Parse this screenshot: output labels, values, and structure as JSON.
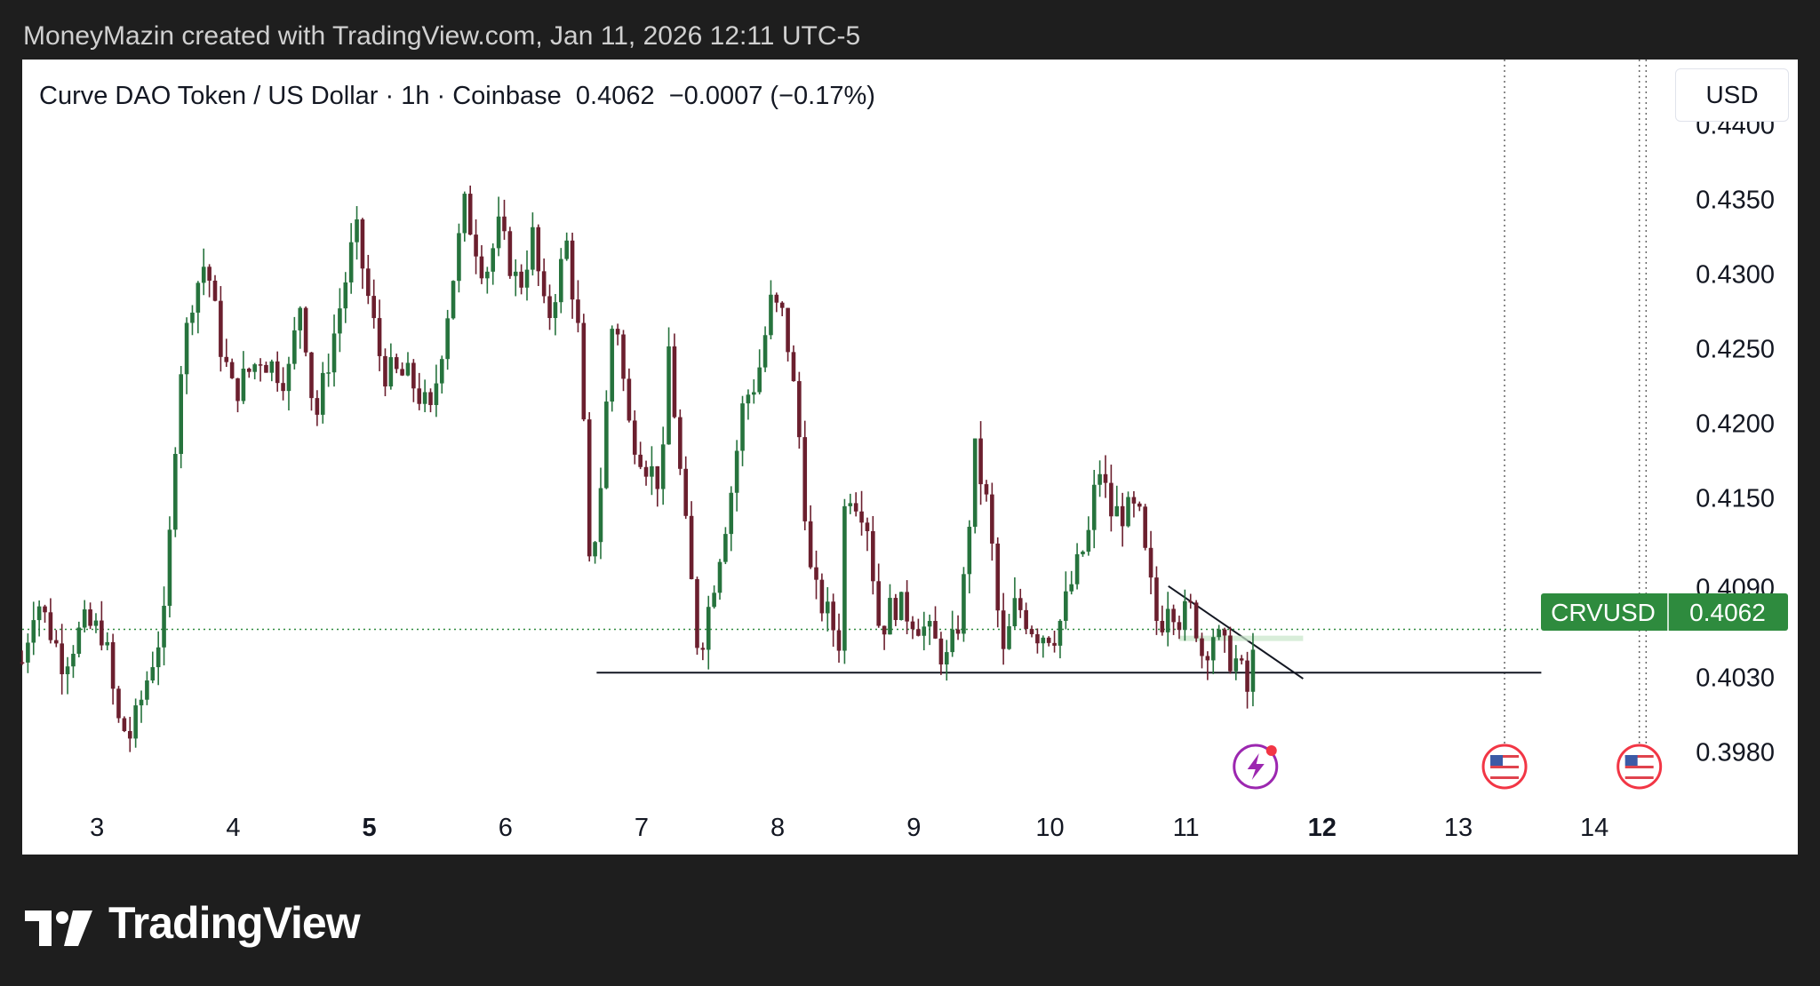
{
  "attribution": "MoneyMazin created with TradingView.com, Jan 11, 2026 12:11 UTC-5",
  "legend": {
    "symbol_name": "Curve DAO Token / US Dollar · 1h · Coinbase",
    "last": "0.4062",
    "change": "−0.0007 (−0.17%)"
  },
  "currency_button": "USD",
  "price_tag": {
    "symbol": "CRVUSD",
    "price": "0.4062"
  },
  "brand": "TradingView",
  "colors": {
    "up": "#26733d",
    "down": "#6b1f2e",
    "tag_bg": "#2e8b3e",
    "background": "#1e1e1e"
  },
  "chart_data": {
    "type": "candlestick",
    "interval": "1h",
    "y_ticks": [
      "0.4400",
      "0.4350",
      "0.4300",
      "0.4250",
      "0.4200",
      "0.4150",
      "0.4090",
      "0.4030",
      "0.3980"
    ],
    "x_ticks": [
      {
        "label": "3",
        "day": 3,
        "bold": false
      },
      {
        "label": "4",
        "day": 4,
        "bold": false
      },
      {
        "label": "5",
        "day": 5,
        "bold": true
      },
      {
        "label": "6",
        "day": 6,
        "bold": false
      },
      {
        "label": "7",
        "day": 7,
        "bold": false
      },
      {
        "label": "8",
        "day": 8,
        "bold": false
      },
      {
        "label": "9",
        "day": 9,
        "bold": false
      },
      {
        "label": "10",
        "day": 10,
        "bold": false
      },
      {
        "label": "11",
        "day": 11,
        "bold": false
      },
      {
        "label": "12",
        "day": 12,
        "bold": true
      },
      {
        "label": "13",
        "day": 13,
        "bold": false
      },
      {
        "label": "14",
        "day": 14,
        "bold": false
      }
    ],
    "ylim": [
      0.396,
      0.443
    ],
    "xlim": [
      2.45,
      14.43
    ],
    "last_price": 0.4062,
    "support_line": {
      "y": 0.4033,
      "x_start": 6.67,
      "x_end": 13.61
    },
    "trend_line": {
      "x_start": 10.87,
      "y_start": 0.4091,
      "x_end": 11.86,
      "y_end": 0.4029
    },
    "event_lines": [
      13.34,
      14.33,
      14.38
    ],
    "events": [
      {
        "icon": "lightning-icon",
        "day": 11.51
      },
      {
        "icon": "us-flag-icon",
        "day": 13.34
      },
      {
        "icon": "us-flag-icon",
        "day": 14.33
      }
    ],
    "anchors": [
      [
        2.45,
        0.404,
        0.405
      ],
      [
        2.55,
        0.4085,
        0.409
      ],
      [
        2.75,
        0.404,
        0.405
      ],
      [
        2.9,
        0.4065,
        0.407
      ],
      [
        3.05,
        0.406,
        0.4065
      ],
      [
        3.15,
        0.4,
        0.4005
      ],
      [
        3.25,
        0.399,
        0.3995
      ],
      [
        3.4,
        0.404,
        0.4045
      ],
      [
        3.5,
        0.407,
        0.4075
      ],
      [
        3.6,
        0.423,
        0.4235
      ],
      [
        3.7,
        0.4285,
        0.429
      ],
      [
        3.8,
        0.431,
        0.4315
      ],
      [
        3.9,
        0.4255,
        0.426
      ],
      [
        4.0,
        0.422,
        0.4225
      ],
      [
        4.2,
        0.4245,
        0.425
      ],
      [
        4.4,
        0.423,
        0.4235
      ],
      [
        4.5,
        0.4285,
        0.429
      ],
      [
        4.6,
        0.42,
        0.4205
      ],
      [
        4.8,
        0.4285,
        0.429
      ],
      [
        4.9,
        0.433,
        0.4335
      ],
      [
        5.0,
        0.428,
        0.4285
      ],
      [
        5.1,
        0.4235,
        0.424
      ],
      [
        5.3,
        0.423,
        0.4235
      ],
      [
        5.45,
        0.4205,
        0.421
      ],
      [
        5.6,
        0.429,
        0.4295
      ],
      [
        5.7,
        0.4345,
        0.435
      ],
      [
        5.85,
        0.43,
        0.4305
      ],
      [
        5.95,
        0.433,
        0.4335
      ],
      [
        6.1,
        0.429,
        0.4295
      ],
      [
        6.2,
        0.4325,
        0.433
      ],
      [
        6.3,
        0.4265,
        0.427
      ],
      [
        6.45,
        0.432,
        0.4325
      ],
      [
        6.55,
        0.425,
        0.4255
      ],
      [
        6.62,
        0.4095,
        0.41
      ],
      [
        6.7,
        0.416,
        0.4165
      ],
      [
        6.8,
        0.4285,
        0.429
      ],
      [
        6.9,
        0.42,
        0.4205
      ],
      [
        7.05,
        0.417,
        0.4175
      ],
      [
        7.15,
        0.416,
        0.4165
      ],
      [
        7.2,
        0.425,
        0.4255
      ],
      [
        7.3,
        0.415,
        0.4155
      ],
      [
        7.42,
        0.4045,
        0.405
      ],
      [
        7.5,
        0.408,
        0.4085
      ],
      [
        7.65,
        0.415,
        0.4155
      ],
      [
        7.75,
        0.4215,
        0.422
      ],
      [
        7.85,
        0.423,
        0.4235
      ],
      [
        7.95,
        0.428,
        0.4285
      ],
      [
        8.05,
        0.427,
        0.4275
      ],
      [
        8.15,
        0.42,
        0.4205
      ],
      [
        8.25,
        0.409,
        0.4095
      ],
      [
        8.35,
        0.4075,
        0.408
      ],
      [
        8.45,
        0.4055,
        0.406
      ],
      [
        8.5,
        0.416,
        0.4165
      ],
      [
        8.65,
        0.414,
        0.4145
      ],
      [
        8.75,
        0.406,
        0.4065
      ],
      [
        8.85,
        0.408,
        0.4085
      ],
      [
        9.0,
        0.407,
        0.4075
      ],
      [
        9.1,
        0.406,
        0.4065
      ],
      [
        9.25,
        0.404,
        0.4045
      ],
      [
        9.35,
        0.4075,
        0.408
      ],
      [
        9.45,
        0.418,
        0.4185
      ],
      [
        9.55,
        0.414,
        0.4145
      ],
      [
        9.65,
        0.404,
        0.4045
      ],
      [
        9.75,
        0.408,
        0.4085
      ],
      [
        9.9,
        0.406,
        0.4065
      ],
      [
        10.05,
        0.406,
        0.4065
      ],
      [
        10.15,
        0.409,
        0.4095
      ],
      [
        10.3,
        0.413,
        0.4135
      ],
      [
        10.35,
        0.4175,
        0.418
      ],
      [
        10.45,
        0.414,
        0.4145
      ],
      [
        10.55,
        0.414,
        0.4145
      ],
      [
        10.65,
        0.414,
        0.4145
      ],
      [
        10.7,
        0.411,
        0.4115
      ],
      [
        10.8,
        0.406,
        0.4065
      ],
      [
        10.87,
        0.4085,
        0.409
      ],
      [
        10.95,
        0.407,
        0.4075
      ],
      [
        11.05,
        0.4075,
        0.408
      ],
      [
        11.12,
        0.4045,
        0.405
      ],
      [
        11.2,
        0.406,
        0.4065
      ],
      [
        11.3,
        0.4045,
        0.405
      ],
      [
        11.38,
        0.404,
        0.4045
      ],
      [
        11.45,
        0.402,
        0.4025
      ],
      [
        11.52,
        0.4058,
        0.4062
      ]
    ]
  }
}
